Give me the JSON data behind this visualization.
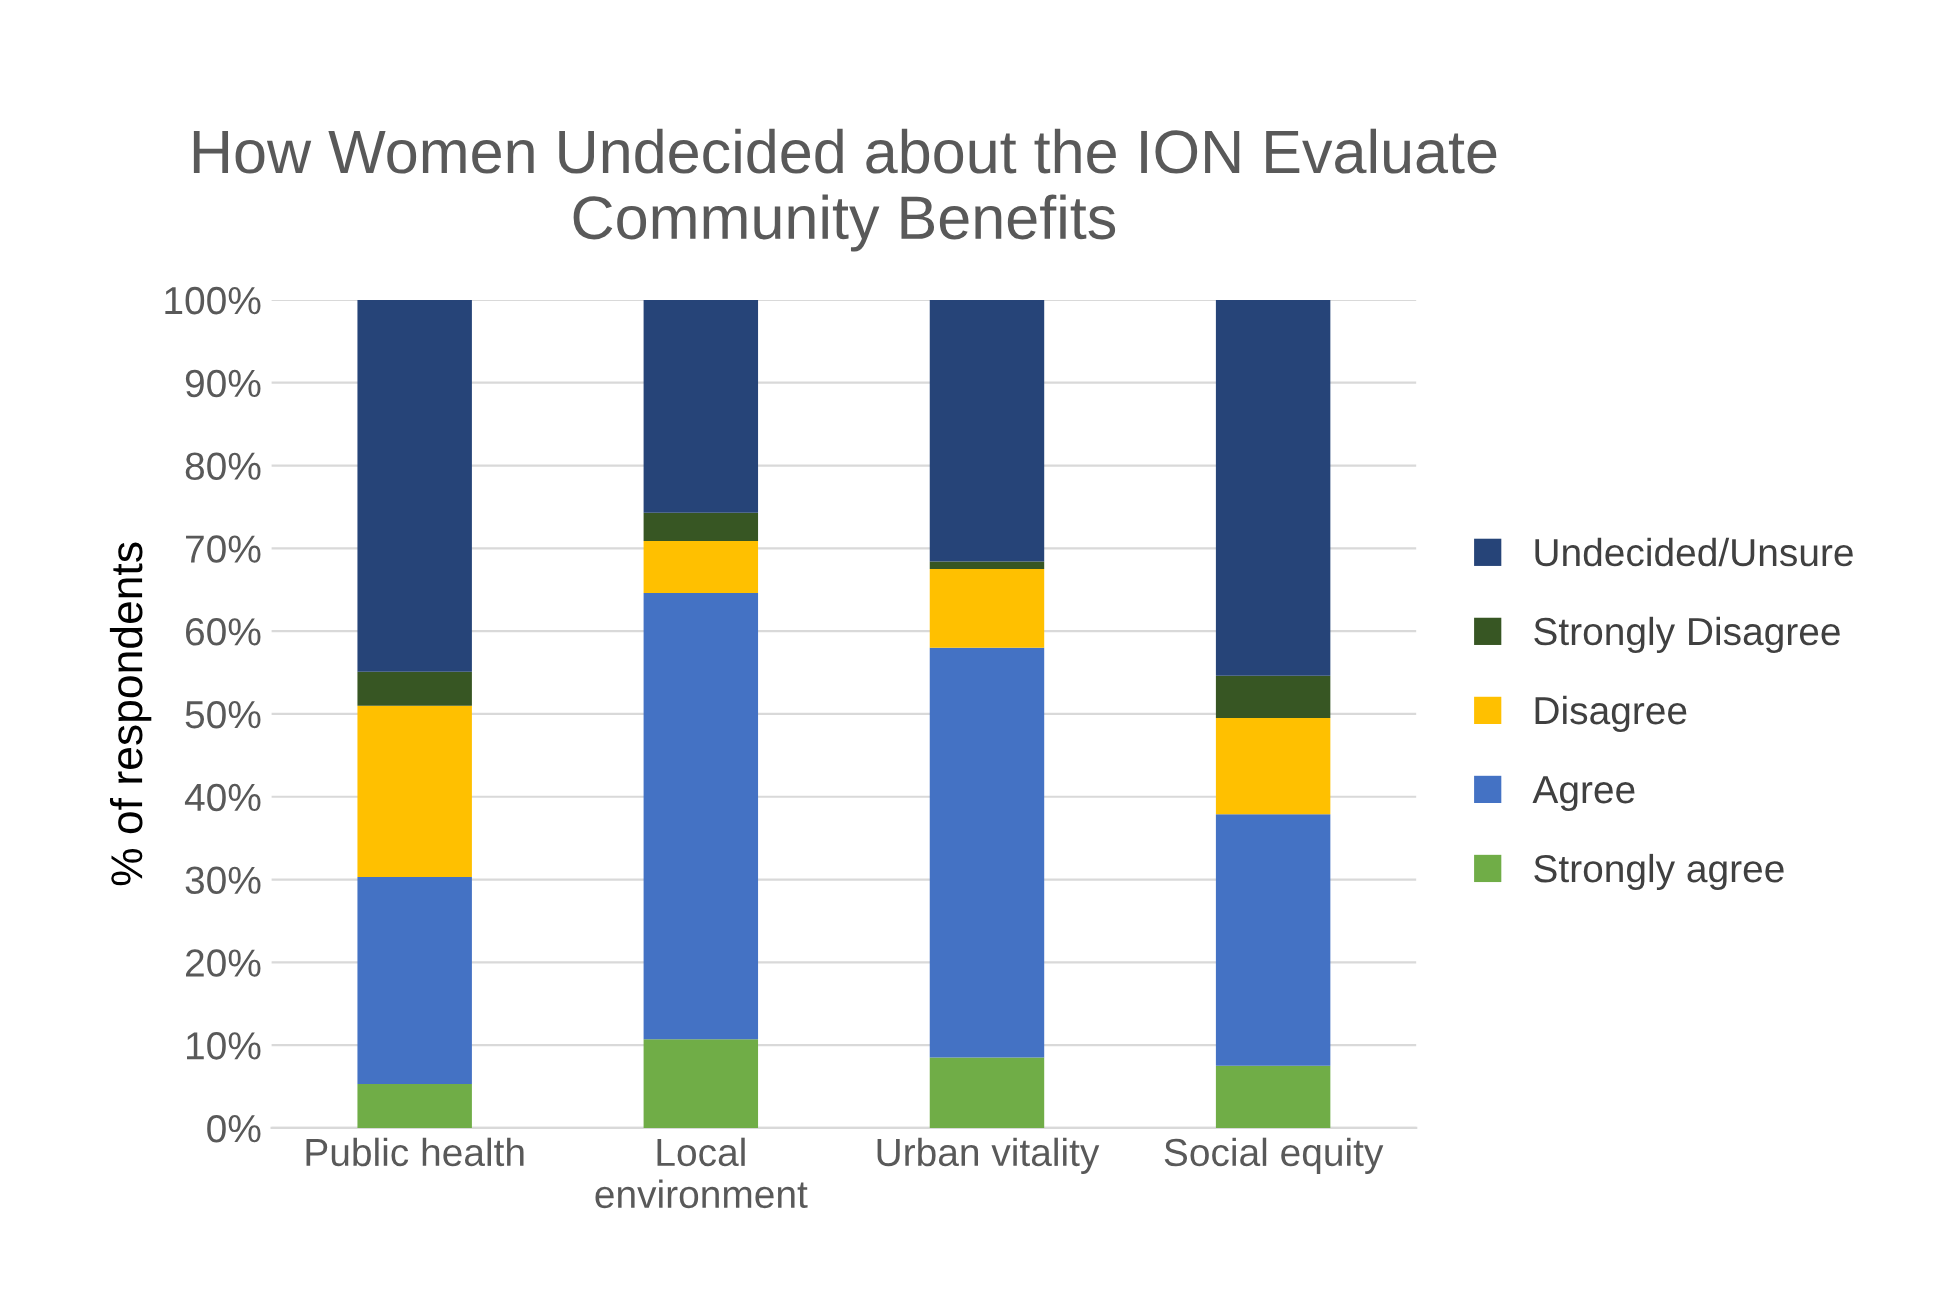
{
  "chart_data": {
    "type": "bar",
    "title": "How Women Undecided about the ION Evaluate\nCommunity Benefits",
    "ylabel": "% of respondents",
    "categories": [
      "Public health",
      "Local\nenvironment",
      "Urban vitality",
      "Social equity"
    ],
    "stacked": true,
    "series": [
      {
        "name": "Strongly agree",
        "color": "#70ad47",
        "values": [
          5.3,
          10.7,
          8.5,
          7.5
        ]
      },
      {
        "name": "Agree",
        "color": "#4472c4",
        "values": [
          25.0,
          53.9,
          49.5,
          30.4
        ]
      },
      {
        "name": "Disagree",
        "color": "#ffc000",
        "values": [
          20.7,
          6.3,
          9.5,
          11.6
        ]
      },
      {
        "name": "Strongly Disagree",
        "color": "#375623",
        "values": [
          4.1,
          3.4,
          0.9,
          5.1
        ]
      },
      {
        "name": "Undecided/Unsure",
        "color": "#264478",
        "values": [
          44.9,
          25.7,
          31.6,
          45.4
        ]
      }
    ],
    "ylim": [
      0,
      100
    ],
    "yticks": [
      {
        "value": 0,
        "label": "0%"
      },
      {
        "value": 10,
        "label": "10%"
      },
      {
        "value": 20,
        "label": "20%"
      },
      {
        "value": 30,
        "label": "30%"
      },
      {
        "value": 40,
        "label": "40%"
      },
      {
        "value": 50,
        "label": "50%"
      },
      {
        "value": 60,
        "label": "60%"
      },
      {
        "value": 70,
        "label": "70%"
      },
      {
        "value": 80,
        "label": "80%"
      },
      {
        "value": 90,
        "label": "90%"
      },
      {
        "value": 100,
        "label": "100%"
      }
    ],
    "grid": "y",
    "legend": "right"
  }
}
